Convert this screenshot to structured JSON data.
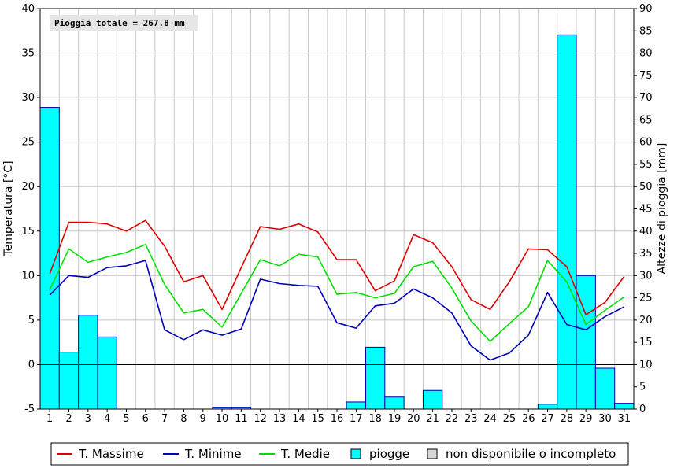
{
  "chart_data": {
    "type": "bar",
    "annotation": "Pioggia totale = 267.8 mm",
    "x_axis": {
      "categories": [
        "1",
        "2",
        "3",
        "4",
        "5",
        "6",
        "7",
        "8",
        "9",
        "10",
        "11",
        "12",
        "13",
        "14",
        "15",
        "16",
        "17",
        "18",
        "19",
        "20",
        "21",
        "22",
        "23",
        "24",
        "25",
        "26",
        "27",
        "28",
        "29",
        "30",
        "31"
      ]
    },
    "y_axis_left": {
      "label": "Temperatura [°C]",
      "range": [
        -5,
        40
      ],
      "ticks": [
        "-5",
        "0",
        "5",
        "10",
        "15",
        "20",
        "25",
        "30",
        "35",
        "40"
      ]
    },
    "y_axis_right": {
      "label": "Altezze di pioggia [mm]",
      "range": [
        0,
        90
      ],
      "ticks": [
        "0",
        "5",
        "10",
        "15",
        "20",
        "25",
        "30",
        "35",
        "40",
        "45",
        "50",
        "55",
        "60",
        "65",
        "70",
        "75",
        "80",
        "85",
        "90"
      ]
    },
    "grid": true,
    "legend_position": "bottom",
    "colors": {
      "max": "#dd0000",
      "min": "#0000bb",
      "med": "#00e000",
      "rain": "#00ffff",
      "rain_border": "#0000aa",
      "na": "#d8d8d8"
    },
    "legend": [
      {
        "key": "max",
        "label": "T. Massime"
      },
      {
        "key": "min",
        "label": "T. Minime"
      },
      {
        "key": "med",
        "label": "T. Medie"
      },
      {
        "key": "rain",
        "label": "piogge"
      },
      {
        "key": "na",
        "label": "non disponibile o incompleto"
      }
    ],
    "series": [
      {
        "key": "max",
        "name": "T. Massime",
        "values": [
          10.2,
          16.0,
          16.0,
          15.8,
          15.0,
          16.2,
          13.3,
          9.3,
          10.0,
          6.2,
          10.9,
          15.5,
          15.2,
          15.8,
          14.9,
          11.8,
          11.8,
          8.3,
          9.4,
          14.6,
          13.7,
          11.0,
          7.3,
          6.2,
          9.3,
          13.0,
          12.9,
          11.0,
          5.6,
          7.0,
          9.9
        ]
      },
      {
        "key": "min",
        "name": "T. Minime",
        "values": [
          7.8,
          10.0,
          9.8,
          10.9,
          11.1,
          11.7,
          3.9,
          2.8,
          3.9,
          3.3,
          4.0,
          9.6,
          9.1,
          8.9,
          8.8,
          4.7,
          4.1,
          6.6,
          6.9,
          8.5,
          7.5,
          5.8,
          2.1,
          0.5,
          1.3,
          3.3,
          8.1,
          4.5,
          3.9,
          5.4,
          6.5
        ]
      },
      {
        "key": "med",
        "name": "T. Medie",
        "values": [
          8.4,
          13.0,
          11.5,
          12.1,
          12.6,
          13.5,
          9.0,
          5.8,
          6.2,
          4.2,
          8.0,
          11.8,
          11.1,
          12.4,
          12.1,
          7.9,
          8.1,
          7.5,
          8.0,
          11.0,
          11.6,
          8.6,
          4.9,
          2.6,
          4.6,
          6.5,
          11.7,
          9.3,
          4.5,
          6.1,
          7.6
        ]
      },
      {
        "key": "rain",
        "name": "piogge",
        "values": [
          67.8,
          12.8,
          21.1,
          16.2,
          0,
          0,
          0,
          0,
          0,
          0.3,
          0.3,
          0,
          0,
          0,
          0,
          0,
          1.6,
          13.9,
          2.7,
          0,
          4.2,
          0,
          0,
          0,
          0,
          0,
          1.1,
          84.1,
          30.0,
          9.2,
          1.3
        ]
      }
    ]
  }
}
